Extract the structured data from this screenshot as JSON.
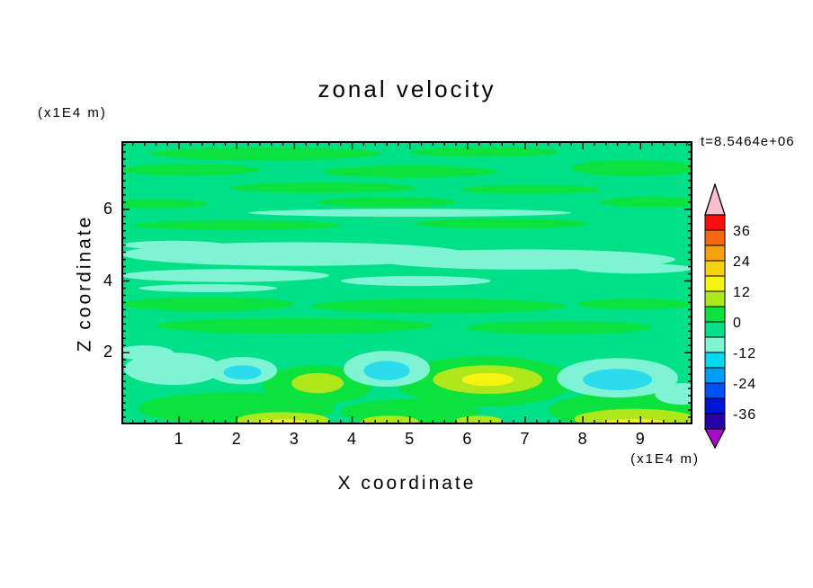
{
  "title": "zonal velocity",
  "timestamp": "t=8.5464e+06",
  "axes": {
    "x_label": "X coordinate",
    "y_label": "Z coordinate",
    "x_unit": "(x1E4 m)",
    "y_unit": "(x1E4 m)"
  },
  "chart_data": {
    "type": "heatmap",
    "style": "filled-contour",
    "title": "zonal velocity",
    "xlabel": "X coordinate",
    "ylabel": "Z coordinate",
    "x_unit": "(x1E4 m)",
    "y_unit": "(x1E4 m)",
    "time_annotation": "t=8.5464e+06",
    "xlim": [
      0,
      9.9
    ],
    "ylim": [
      0,
      7.9
    ],
    "xticks": [
      1,
      2,
      3,
      4,
      5,
      6,
      7,
      8,
      9
    ],
    "yticks": [
      2,
      4,
      6
    ],
    "minor_tick_step": 0.2,
    "grid": false,
    "colorbar": {
      "position": "right",
      "labels": [
        36,
        24,
        12,
        0,
        -12,
        -24,
        -36
      ],
      "levels_high_to_low": [
        42,
        36,
        30,
        24,
        18,
        12,
        6,
        0,
        -6,
        -12,
        -18,
        -24,
        -30,
        -36,
        -42
      ],
      "colors_high_to_low": [
        "#F80E0E",
        "#F8660E",
        "#F8A00E",
        "#F8D20E",
        "#F4F410",
        "#AEE81C",
        "#0BE23D",
        "#00E187",
        "#7FF4D4",
        "#00D9F0",
        "#009CF8",
        "#0050F8",
        "#0014D8",
        "#2800A8"
      ],
      "over_arrow_color": "#F6BFCB",
      "under_arrow_color": "#A80CC8"
    },
    "field": {
      "description": "mostly near-zero zonal velocity: background band -6..0, elongated 0..6 streaks, pale -12..-6 bands mid-height, small -18..-12 cores and 6..18 patches near the bottom boundary",
      "background_band": "-6..0",
      "palette": {
        "bg": "#00E187",
        "g": "#0BE23D",
        "aqua": "#7FF4D4",
        "cyan": "#2BDCEC",
        "yg": "#AEE81C",
        "y": "#F4F410"
      },
      "blobs": [
        [
          2.5,
          7.55,
          2.0,
          0.18,
          "g"
        ],
        [
          6.3,
          7.6,
          1.3,
          0.14,
          "g"
        ],
        [
          1.2,
          7.1,
          1.2,
          0.16,
          "g"
        ],
        [
          5.0,
          7.05,
          1.5,
          0.17,
          "g"
        ],
        [
          8.9,
          7.15,
          1.1,
          0.22,
          "g"
        ],
        [
          3.5,
          6.6,
          1.6,
          0.15,
          "g"
        ],
        [
          7.1,
          6.55,
          1.2,
          0.13,
          "g"
        ],
        [
          0.6,
          6.15,
          0.9,
          0.13,
          "g"
        ],
        [
          4.6,
          6.2,
          1.2,
          0.14,
          "g"
        ],
        [
          9.2,
          6.2,
          0.9,
          0.15,
          "g"
        ],
        [
          2.0,
          5.55,
          1.8,
          0.14,
          "g"
        ],
        [
          6.6,
          5.6,
          1.5,
          0.14,
          "g"
        ],
        [
          1.5,
          3.35,
          1.5,
          0.2,
          "g"
        ],
        [
          5.5,
          3.3,
          2.2,
          0.2,
          "g"
        ],
        [
          8.9,
          3.35,
          1.0,
          0.15,
          "g"
        ],
        [
          3.0,
          2.75,
          2.4,
          0.22,
          "g"
        ],
        [
          7.6,
          2.7,
          1.6,
          0.18,
          "g"
        ],
        [
          3.4,
          1.1,
          0.95,
          0.55,
          "g"
        ],
        [
          6.3,
          1.2,
          1.55,
          0.7,
          "g"
        ],
        [
          2.0,
          0.45,
          1.7,
          0.45,
          "g"
        ],
        [
          5.0,
          0.35,
          1.2,
          0.35,
          "g"
        ],
        [
          8.9,
          0.4,
          1.5,
          0.5,
          "g"
        ],
        [
          3.0,
          4.75,
          3.0,
          0.33,
          "aqua"
        ],
        [
          7.0,
          4.6,
          2.6,
          0.28,
          "aqua"
        ],
        [
          1.8,
          4.15,
          1.8,
          0.18,
          "aqua"
        ],
        [
          5.1,
          4.0,
          1.3,
          0.14,
          "aqua"
        ],
        [
          8.9,
          4.35,
          1.0,
          0.14,
          "aqua"
        ],
        [
          0.9,
          5.0,
          0.9,
          0.12,
          "aqua"
        ],
        [
          5.0,
          5.9,
          2.8,
          0.11,
          "aqua"
        ],
        [
          1.5,
          3.8,
          1.2,
          0.11,
          "aqua"
        ],
        [
          0.9,
          1.55,
          0.85,
          0.45,
          "aqua"
        ],
        [
          2.1,
          1.5,
          0.6,
          0.38,
          "aqua"
        ],
        [
          4.6,
          1.55,
          0.75,
          0.5,
          "aqua"
        ],
        [
          8.6,
          1.3,
          1.05,
          0.55,
          "aqua"
        ],
        [
          9.7,
          0.85,
          0.45,
          0.3,
          "aqua"
        ],
        [
          0.4,
          2.0,
          0.5,
          0.2,
          "aqua"
        ],
        [
          2.1,
          1.45,
          0.33,
          0.2,
          "cyan"
        ],
        [
          4.6,
          1.5,
          0.4,
          0.27,
          "cyan"
        ],
        [
          8.6,
          1.25,
          0.6,
          0.3,
          "cyan"
        ],
        [
          3.4,
          1.15,
          0.45,
          0.28,
          "yg"
        ],
        [
          6.35,
          1.25,
          0.95,
          0.4,
          "yg"
        ],
        [
          2.8,
          0.12,
          0.8,
          0.22,
          "yg"
        ],
        [
          4.65,
          0.08,
          0.5,
          0.16,
          "yg"
        ],
        [
          6.2,
          0.1,
          0.4,
          0.14,
          "yg"
        ],
        [
          8.9,
          0.15,
          1.05,
          0.28,
          "yg"
        ],
        [
          6.35,
          1.25,
          0.45,
          0.18,
          "y"
        ],
        [
          2.8,
          0.04,
          0.45,
          0.1,
          "y"
        ],
        [
          8.9,
          0.05,
          0.55,
          0.1,
          "y"
        ]
      ]
    }
  }
}
